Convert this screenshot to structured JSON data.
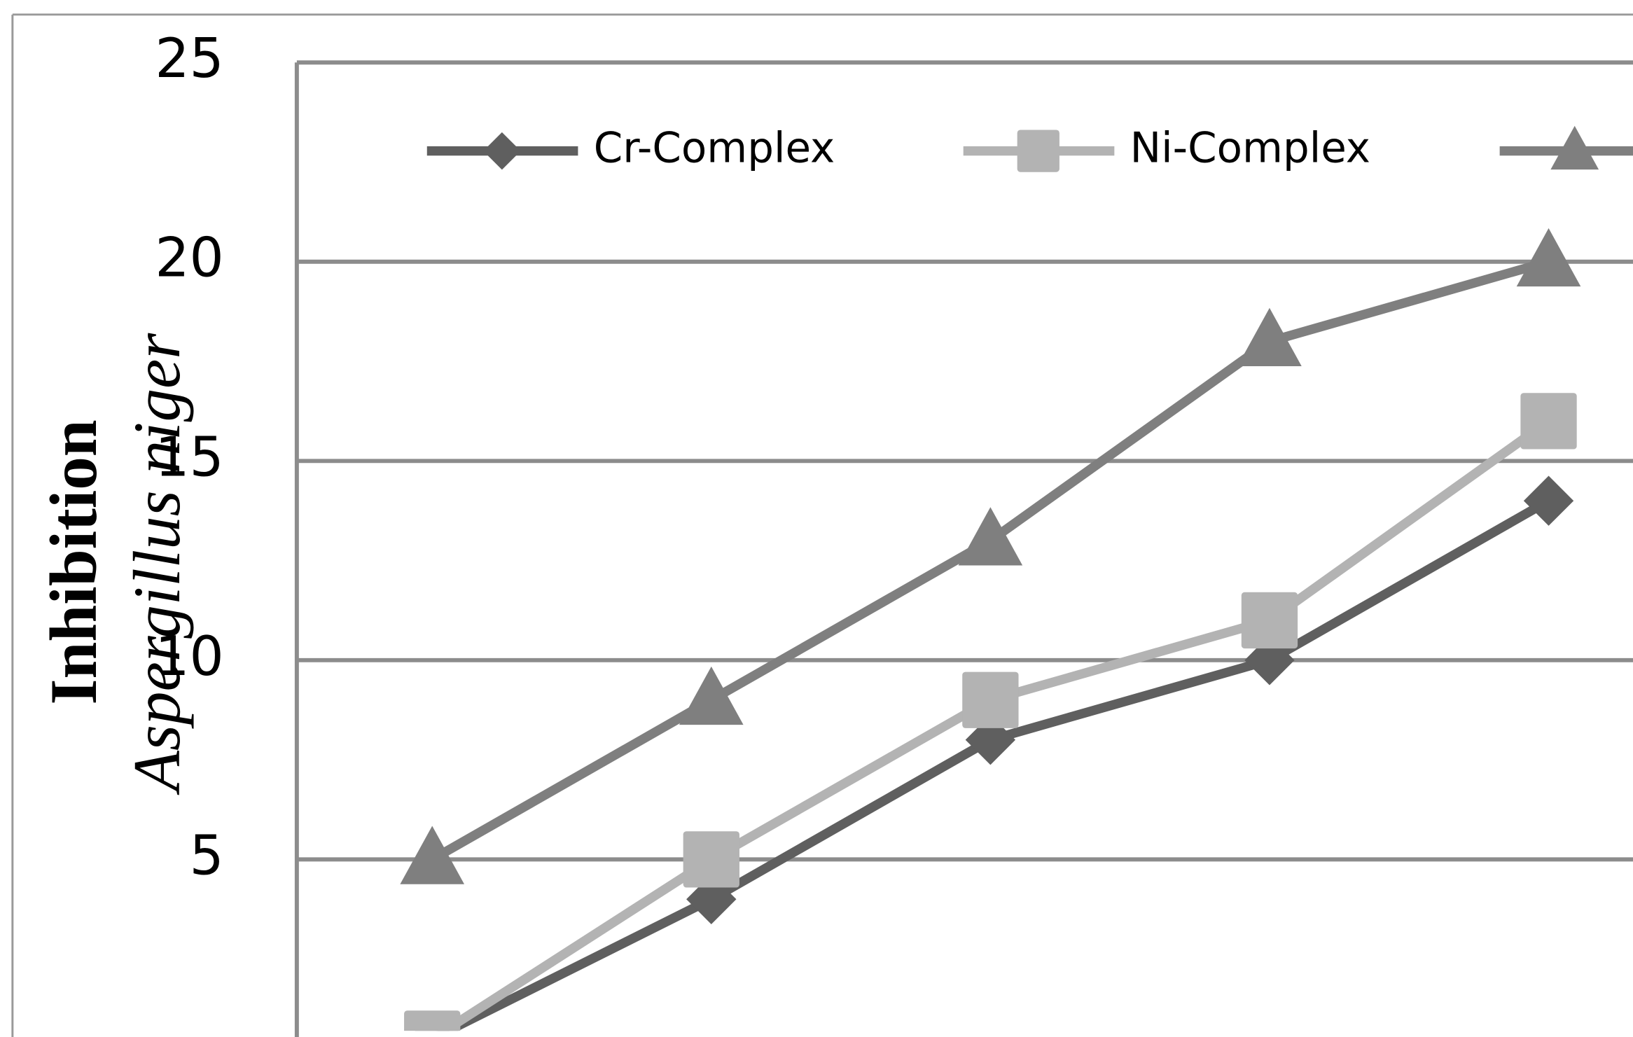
{
  "chart_data": {
    "type": "line",
    "y_label_lines": [
      "Inhibition",
      "Aspergillus niger"
    ],
    "categories": [
      null,
      null,
      null,
      null,
      null
    ],
    "series": [
      {
        "name": "Cr-Complex",
        "color": "#5f5f5f",
        "marker": "diamond",
        "values": [
          0.5,
          4,
          8,
          10,
          14
        ]
      },
      {
        "name": "Ni-Complex",
        "color": "#b3b3b3",
        "marker": "square",
        "values": [
          0.5,
          5,
          9,
          11,
          16
        ]
      },
      {
        "color": "#7f7f7f",
        "marker": "triangle",
        "values": [
          5,
          9,
          13,
          18,
          20
        ]
      }
    ],
    "ylim": [
      0.7,
      25
    ],
    "yticks": [
      5,
      10,
      15,
      20,
      25
    ],
    "grid": true,
    "legend": "top"
  }
}
